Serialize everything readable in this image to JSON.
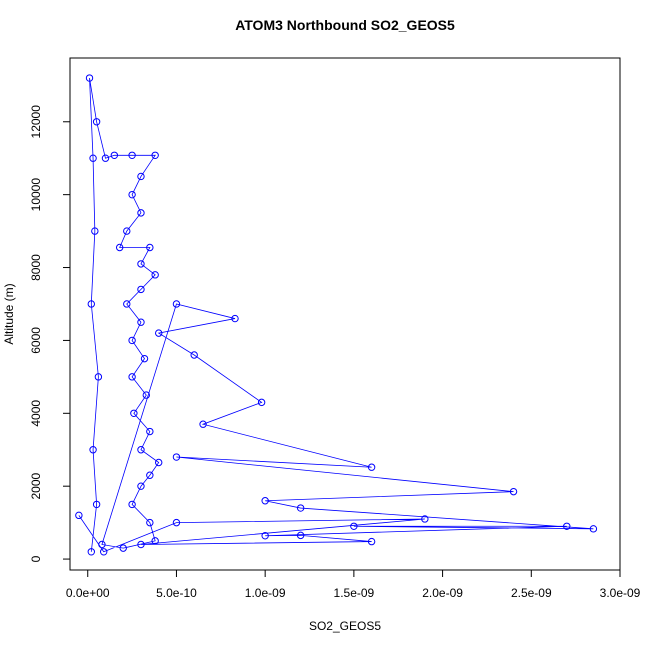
{
  "chart_data": {
    "type": "line",
    "title": "ATOM3 Northbound SO2_GEOS5",
    "x_label": "SO2_GEOS5",
    "y_label": "Altitude (m)",
    "color": "#0000ff",
    "x": [
      2e-11,
      5e-11,
      3e-11,
      6e-11,
      2e-11,
      4e-11,
      3e-11,
      1e-11,
      5e-11,
      1e-10,
      1.5e-10,
      2.5e-10,
      3.8e-10,
      3e-10,
      2.5e-10,
      3e-10,
      2.2e-10,
      1.8e-10,
      3.5e-10,
      3e-10,
      3.8e-10,
      3e-10,
      2.2e-10,
      3e-10,
      2.5e-10,
      3.2e-10,
      2.5e-10,
      3.3e-10,
      2.6e-10,
      3.5e-10,
      3e-10,
      4e-10,
      3.5e-10,
      3e-10,
      2.5e-10,
      3.5e-10,
      3.8e-10,
      2e-10,
      8e-11,
      5e-10,
      8.3e-10,
      4e-10,
      6e-10,
      9.8e-10,
      6.5e-10,
      1.6e-09,
      5e-10,
      2.4e-09,
      1e-09,
      1.2e-09,
      2.85e-09,
      1.5e-09,
      2.7e-09,
      1e-09,
      1.2e-09,
      1.6e-09,
      3e-10,
      1.9e-09,
      5e-10,
      9e-11,
      -5e-11
    ],
    "values": [
      200,
      1500,
      3000,
      5000,
      7000,
      9000,
      11000,
      13200,
      12000,
      11000,
      11080,
      11080,
      11080,
      10500,
      10000,
      9500,
      9000,
      8550,
      8550,
      8100,
      7800,
      7400,
      7000,
      6500,
      6000,
      5500,
      5000,
      4500,
      4000,
      3500,
      3000,
      2650,
      2300,
      2000,
      1500,
      1000,
      500,
      300,
      400,
      7000,
      6600,
      6200,
      5600,
      4300,
      3700,
      2520,
      2800,
      1850,
      1600,
      1400,
      830,
      900,
      900,
      640,
      650,
      480,
      400,
      1100,
      1000,
      200,
      1200
    ],
    "xlim": [
      -1e-10,
      3e-09
    ],
    "xticks": [
      {
        "value": 0,
        "label": "0.0e+00"
      },
      {
        "value": 5e-10,
        "label": "5.0e-10"
      },
      {
        "value": 1e-09,
        "label": "1.0e-09"
      },
      {
        "value": 1.5e-09,
        "label": "1.5e-09"
      },
      {
        "value": 2e-09,
        "label": "2.0e-09"
      },
      {
        "value": 2.5e-09,
        "label": "2.5e-09"
      },
      {
        "value": 3e-09,
        "label": "3.0e-09"
      }
    ],
    "ylim": [
      -300,
      13750
    ],
    "yticks": [
      0,
      2000,
      4000,
      6000,
      8000,
      10000,
      12000
    ],
    "grid": false
  }
}
